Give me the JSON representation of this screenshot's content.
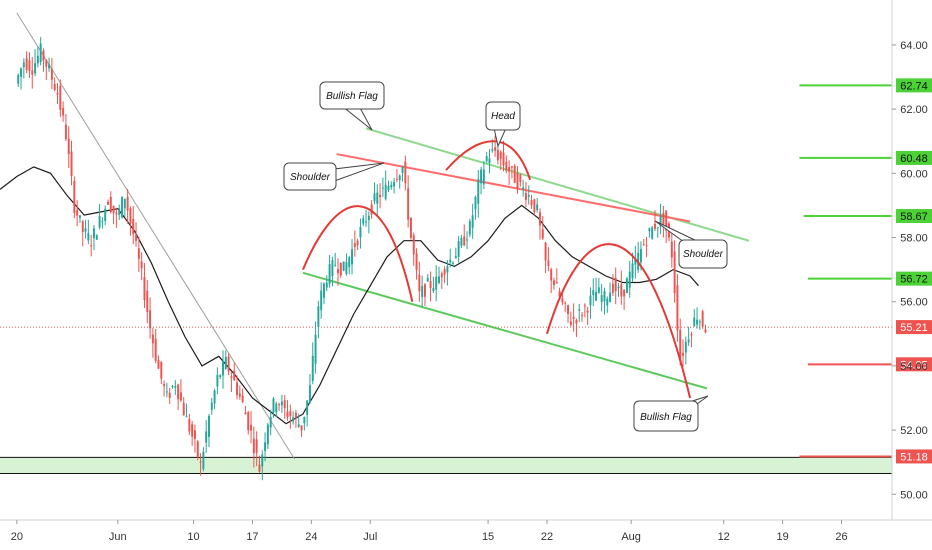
{
  "chart_data": {
    "type": "candlestick",
    "y_axis": {
      "position": "right",
      "range": [
        49.2,
        65.4
      ],
      "ticks": [
        50,
        52,
        54,
        56,
        58,
        60,
        62,
        64
      ],
      "tick_labels": [
        "50.00",
        "52.00",
        "54.00",
        "56.00",
        "58.00",
        "60.00",
        "62.00",
        "64.00"
      ]
    },
    "x_axis": {
      "range_days": [
        -2,
        66
      ],
      "ticks": [
        {
          "day": 0,
          "label": "20"
        },
        {
          "day": 12,
          "label": "Jun"
        },
        {
          "day": 21,
          "label": "10"
        },
        {
          "day": 28,
          "label": "17"
        },
        {
          "day": 35,
          "label": "24"
        },
        {
          "day": 42,
          "label": "Jul"
        },
        {
          "day": 56,
          "label": "15"
        },
        {
          "day": 63,
          "label": "22"
        },
        {
          "day": 73,
          "label": "Aug"
        },
        {
          "day": 84,
          "label": "12"
        },
        {
          "day": 91,
          "label": "19"
        },
        {
          "day": 98,
          "label": "26"
        }
      ]
    },
    "x_domain": [
      -2,
      104
    ],
    "price_path": [
      [
        0,
        62.8
      ],
      [
        1,
        63.5
      ],
      [
        2,
        63.3
      ],
      [
        3,
        63.8
      ],
      [
        4,
        63.2
      ],
      [
        5,
        62.5
      ],
      [
        6,
        61.2
      ],
      [
        7,
        59.0
      ],
      [
        8,
        58.2
      ],
      [
        9,
        57.9
      ],
      [
        10,
        58.5
      ],
      [
        11,
        59.2
      ],
      [
        12,
        58.6
      ],
      [
        13,
        59.3
      ],
      [
        14,
        58.1
      ],
      [
        15,
        56.8
      ],
      [
        16,
        55.2
      ],
      [
        17,
        53.9
      ],
      [
        18,
        53.0
      ],
      [
        19,
        53.5
      ],
      [
        20,
        52.6
      ],
      [
        21,
        51.8
      ],
      [
        22,
        50.9
      ],
      [
        23,
        52.4
      ],
      [
        24,
        53.6
      ],
      [
        25,
        54.1
      ],
      [
        26,
        53.5
      ],
      [
        27,
        52.8
      ],
      [
        28,
        51.9
      ],
      [
        29,
        50.8
      ],
      [
        30,
        52.3
      ],
      [
        31,
        53.0
      ],
      [
        32,
        52.6
      ],
      [
        33,
        52.4
      ],
      [
        34,
        52.1
      ],
      [
        35,
        53.3
      ],
      [
        36,
        55.9
      ],
      [
        37,
        56.8
      ],
      [
        38,
        57.2
      ],
      [
        39,
        57.0
      ],
      [
        40,
        57.6
      ],
      [
        41,
        58.2
      ],
      [
        42,
        58.8
      ],
      [
        43,
        59.3
      ],
      [
        44,
        59.5
      ],
      [
        45,
        59.9
      ],
      [
        46,
        60.2
      ],
      [
        47,
        58.0
      ],
      [
        48,
        56.2
      ],
      [
        49,
        56.5
      ],
      [
        50,
        56.6
      ],
      [
        51,
        57.1
      ],
      [
        52,
        57.4
      ],
      [
        53,
        57.8
      ],
      [
        54,
        58.3
      ],
      [
        55,
        59.6
      ],
      [
        56,
        60.5
      ],
      [
        57,
        60.7
      ],
      [
        58,
        60.3
      ],
      [
        59,
        60.0
      ],
      [
        60,
        59.6
      ],
      [
        61,
        59.3
      ],
      [
        62,
        58.8
      ],
      [
        63,
        57.2
      ],
      [
        64,
        56.6
      ],
      [
        65,
        55.9
      ],
      [
        66,
        55.4
      ],
      [
        67,
        55.6
      ],
      [
        68,
        55.9
      ],
      [
        69,
        56.3
      ],
      [
        70,
        56.1
      ],
      [
        71,
        56.5
      ],
      [
        72,
        56.2
      ],
      [
        73,
        56.8
      ],
      [
        74,
        57.4
      ],
      [
        75,
        58.0
      ],
      [
        76,
        58.4
      ],
      [
        77,
        58.6
      ],
      [
        78,
        57.5
      ],
      [
        79,
        54.2
      ],
      [
        80,
        55.0
      ],
      [
        81,
        55.6
      ],
      [
        82,
        55.2
      ]
    ],
    "moving_average_path": [
      [
        -2,
        59.5
      ],
      [
        0,
        59.9
      ],
      [
        2,
        60.2
      ],
      [
        4,
        60.0
      ],
      [
        6,
        59.3
      ],
      [
        8,
        58.7
      ],
      [
        10,
        58.8
      ],
      [
        12,
        58.9
      ],
      [
        14,
        58.2
      ],
      [
        16,
        57.2
      ],
      [
        18,
        56.0
      ],
      [
        20,
        54.9
      ],
      [
        22,
        54.0
      ],
      [
        24,
        54.3
      ],
      [
        26,
        53.7
      ],
      [
        28,
        53.0
      ],
      [
        30,
        52.6
      ],
      [
        32,
        52.2
      ],
      [
        34,
        52.5
      ],
      [
        36,
        53.4
      ],
      [
        38,
        54.5
      ],
      [
        40,
        55.6
      ],
      [
        42,
        56.5
      ],
      [
        44,
        57.4
      ],
      [
        46,
        57.9
      ],
      [
        48,
        57.9
      ],
      [
        50,
        57.3
      ],
      [
        52,
        57.1
      ],
      [
        54,
        57.4
      ],
      [
        56,
        57.9
      ],
      [
        58,
        58.6
      ],
      [
        60,
        59.0
      ],
      [
        62,
        58.6
      ],
      [
        64,
        57.9
      ],
      [
        66,
        57.4
      ],
      [
        68,
        57.1
      ],
      [
        70,
        56.8
      ],
      [
        72,
        56.6
      ],
      [
        74,
        56.6
      ],
      [
        76,
        56.7
      ],
      [
        78,
        57.0
      ],
      [
        80,
        56.8
      ],
      [
        81,
        56.5
      ]
    ],
    "current_price": {
      "value": 55.21,
      "label": "55.21",
      "color": "#ef5350"
    },
    "levels": [
      {
        "value": 62.74,
        "label": "62.74",
        "color": "#4cd137",
        "x_start": 93
      },
      {
        "value": 60.48,
        "label": "60.48",
        "color": "#4cd137",
        "x_start": 93
      },
      {
        "value": 58.67,
        "label": "58.67",
        "color": "#4cd137",
        "x_start": 93.5
      },
      {
        "value": 56.72,
        "label": "56.72",
        "color": "#4cd137",
        "x_start": 94
      },
      {
        "value": 54.05,
        "label": "54.05",
        "color": "#ef5350",
        "x_start": 94
      },
      {
        "value": 51.18,
        "label": "51.18",
        "color": "#ef5350",
        "x_start": 93
      }
    ],
    "support_zone": {
      "from": 50.65,
      "to": 51.15,
      "color": "#d8f2d5"
    },
    "trendlines": [
      {
        "name": "downtrend",
        "color": "#9e9e9e",
        "from": [
          0,
          65.0
        ],
        "to": [
          33,
          51.1
        ]
      },
      {
        "name": "flag-upper",
        "color": "#8fd98f",
        "from": [
          41.5,
          61.4
        ],
        "to": [
          87,
          57.9
        ]
      },
      {
        "name": "flag-lower",
        "color": "#5cc95c",
        "from": [
          34,
          56.9
        ],
        "to": [
          82,
          53.3
        ]
      },
      {
        "name": "neckline",
        "color": "#ff6b6b",
        "from": [
          38,
          60.6
        ],
        "to": [
          80,
          58.5
        ]
      }
    ],
    "arcs": [
      {
        "name": "left-shoulder",
        "color": "#e53935",
        "points": [
          [
            34,
            57.0
          ],
          [
            38,
            59.5
          ],
          [
            43.5,
            60.1
          ],
          [
            47,
            56.0
          ]
        ]
      },
      {
        "name": "head",
        "color": "#e53935",
        "points": [
          [
            51,
            60.1
          ],
          [
            55,
            61.3
          ],
          [
            59,
            61.4
          ],
          [
            61,
            59.8
          ]
        ]
      },
      {
        "name": "right-shoulder",
        "color": "#e53935",
        "points": [
          [
            63,
            55.0
          ],
          [
            67,
            58.5
          ],
          [
            74,
            59.6
          ],
          [
            80,
            53.0
          ]
        ]
      }
    ],
    "annotations": [
      {
        "text": "Bullish Flag",
        "color": "#333333"
      },
      {
        "text": "Head",
        "color": "#333333"
      },
      {
        "text": "Shoulder",
        "color": "#333333"
      },
      {
        "text": "Shoulder",
        "color": "#333333"
      },
      {
        "text": "Bullish Flag",
        "color": "#333333"
      }
    ],
    "title": "",
    "xlabel": "",
    "ylabel": "",
    "grid": false
  }
}
